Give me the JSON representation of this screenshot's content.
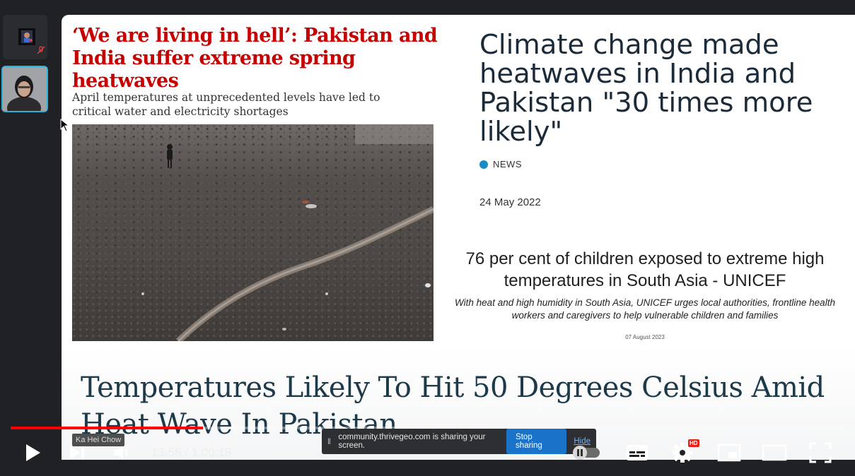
{
  "slide": {
    "guardian_headline": "‘We are living in hell’: Pakistan and India suffer extreme spring heatwaves",
    "guardian_standfirst": "April temperatures at unprecedented levels have led to critical water and electricity shortages",
    "climate_headline": "Climate change made heatwaves in India and Pakistan \"30 times more likely\"",
    "climate_tag": "NEWS",
    "climate_date": "24 May 2022",
    "unicef_headline": "76 per cent of children exposed to extreme high temperatures in South Asia - UNICEF",
    "unicef_standfirst": "With heat and high humidity in South Asia, UNICEF urges local authorities, frontline health workers and caregivers to help vulnerable children and families",
    "unicef_date": "07 August 2023",
    "bottom_headline": "Temperatures Likely To Hit 50 Degrees Celsius Amid Heat Wave In Pakistan"
  },
  "participants": [
    {
      "icon": "presenter-thumbnail",
      "muted": true
    },
    {
      "icon": "speaker-video-thumbnail",
      "active": true
    }
  ],
  "player": {
    "current_time": "13:56",
    "duration": "1:00:18",
    "time_display": "13:56 / 1:00:18",
    "progress_fraction": 0.231,
    "tooltip": "Ka Hei Chow",
    "settings_badge": "HD",
    "accent_color": "#ff0000"
  },
  "screen_share": {
    "message": "community.thrivegeo.com is sharing your screen.",
    "stop_label": "Stop sharing",
    "hide_label": "Hide"
  }
}
